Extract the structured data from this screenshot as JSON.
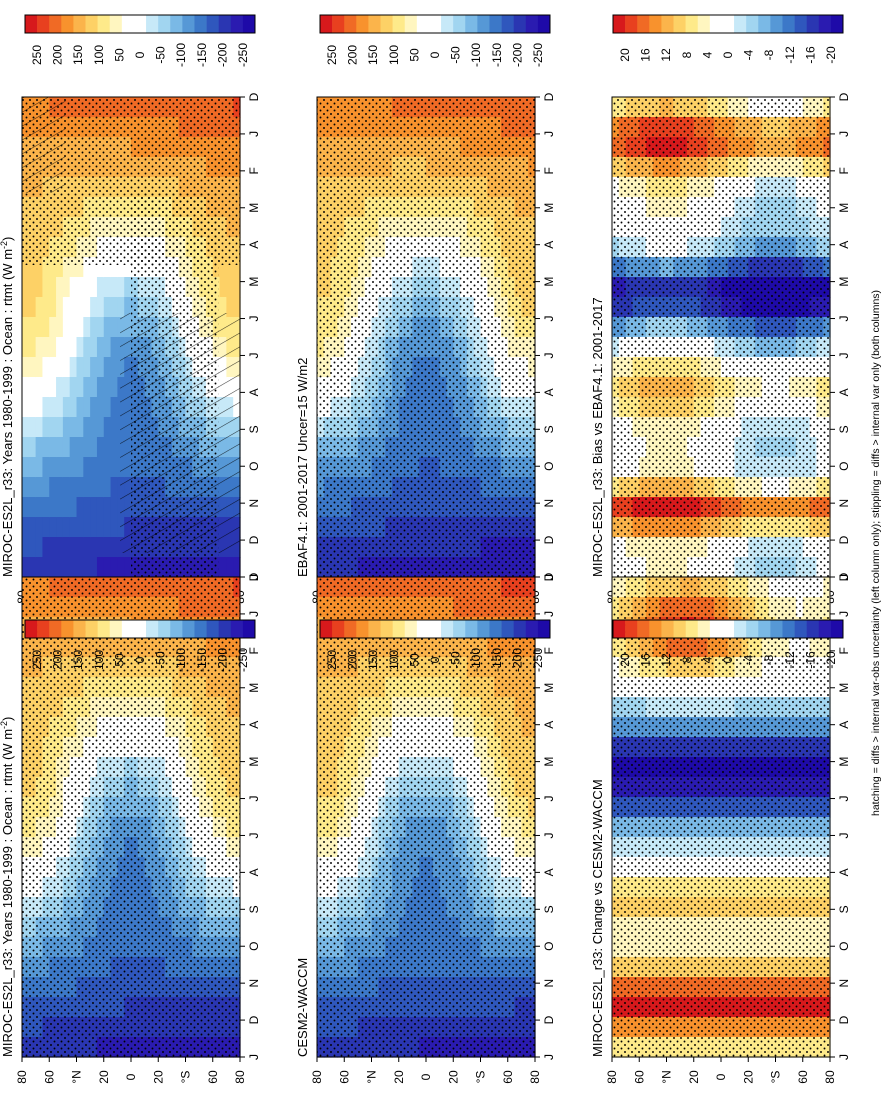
{
  "footnote": "hatching = diffs > internal var-obs uncertainty (left column only); stippling = diffs > internal var only (both columns)",
  "months": [
    "D",
    "J",
    "F",
    "M",
    "A",
    "M",
    "J",
    "J",
    "A",
    "S",
    "O",
    "N",
    "D",
    "J"
  ],
  "lat_ticks": [
    "80",
    "60",
    "°N",
    "20",
    "0",
    "20",
    "°S",
    "60",
    "80"
  ],
  "colorbars": {
    "flux": {
      "labels": [
        "250",
        "200",
        "150",
        "100",
        "50",
        "0",
        "-50",
        "-100",
        "-150",
        "-200",
        "-250"
      ],
      "colors": [
        "#d7191c",
        "#e8401f",
        "#f06a25",
        "#f8922d",
        "#fbb44b",
        "#fdd166",
        "#feea8a",
        "#fff6c0",
        "#ffffff",
        "#ffffff",
        "#c7e9f8",
        "#a1d5f0",
        "#7ab9e6",
        "#5698d6",
        "#3c78c8",
        "#2f57bd",
        "#2a36b2",
        "#2a1bb0",
        "#1e0aa8"
      ]
    },
    "diff": {
      "labels": [
        "20",
        "16",
        "12",
        "8",
        "4",
        "0",
        "-4",
        "-8",
        "-12",
        "-16",
        "-20"
      ],
      "colors": [
        "#d7191c",
        "#e8401f",
        "#f06a25",
        "#f8922d",
        "#fbb44b",
        "#fdd166",
        "#feea8a",
        "#fff6c0",
        "#ffffff",
        "#ffffff",
        "#c7e9f8",
        "#a1d5f0",
        "#7ab9e6",
        "#5698d6",
        "#3c78c8",
        "#2f57bd",
        "#2a36b2",
        "#2a1bb0",
        "#1e0aa8"
      ]
    }
  },
  "chart_data": [
    {
      "type": "heatmap",
      "id": "a",
      "title": "MIROC-ES2L_r33: Years 1980-1999 : Ocean : rtmt (W m",
      "title_sup": "-2",
      "title_tail": ")",
      "x": "month (Dec to Jan, 14 ticks)",
      "y": "latitude 90N to 90S",
      "colorbar": "flux",
      "hatching": true,
      "stippling": true,
      "zlim": [
        -260,
        260
      ]
    },
    {
      "type": "heatmap",
      "id": "b",
      "title": "MIROC-ES2L_r33: Years 1980-1999 : Ocean : rtmt (W m",
      "title_sup": "-2",
      "title_tail": ")",
      "colorbar": "flux",
      "hatching": false,
      "stippling": true,
      "zlim": [
        -260,
        260
      ]
    },
    {
      "type": "heatmap",
      "id": "c",
      "title": "EBAF4.1: 2001-2017 Uncer=15 W/m2",
      "colorbar": "flux",
      "hatching": true,
      "stippling": true,
      "zlim": [
        -260,
        260
      ]
    },
    {
      "type": "heatmap",
      "id": "d",
      "title": "CESM2-WACCM",
      "colorbar": "flux",
      "hatching": false,
      "stippling": true,
      "zlim": [
        -260,
        260
      ]
    },
    {
      "type": "heatmap",
      "id": "e",
      "title": "MIROC-ES2L_r33: Bias vs EBAF4.1: 2001-2017",
      "colorbar": "diff",
      "hatching": true,
      "stippling": true,
      "zlim": [
        -21,
        21
      ]
    },
    {
      "type": "heatmap",
      "id": "f",
      "title": "MIROC-ES2L_r33: Change vs CESM2-WACCM",
      "colorbar": "diff",
      "hatching": false,
      "stippling": true,
      "zlim": [
        -21,
        21
      ]
    }
  ]
}
